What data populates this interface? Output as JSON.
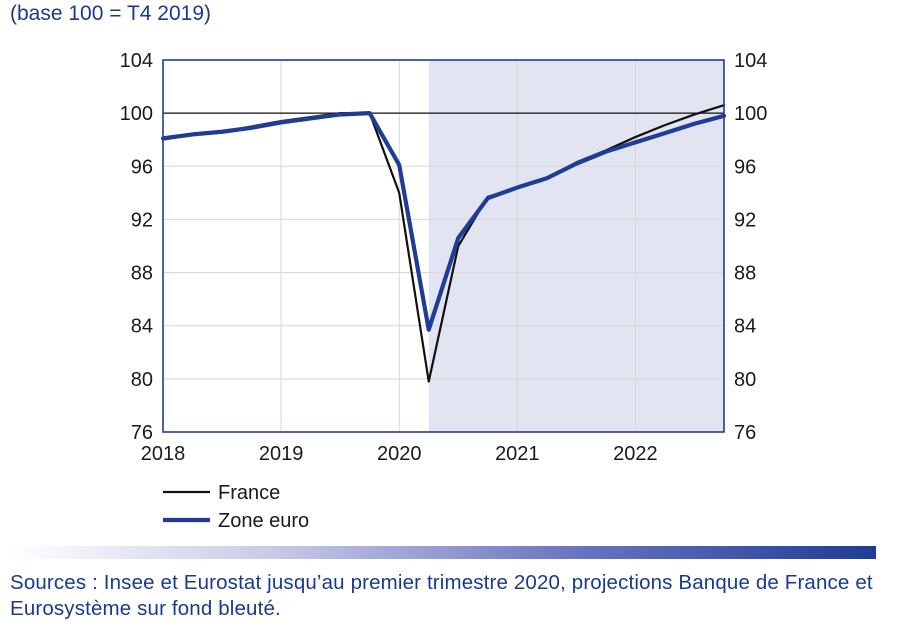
{
  "subtitle": "(base 100 = T4 2019)",
  "sources": "Sources : Insee et Eurostat jusqu’au premier trimestre 2020, projections Banque de France et Eurosystème sur fond bleuté.",
  "colors": {
    "france": "#111111",
    "zone_euro": "#1f3c96",
    "projection_band": "#e3e4f2",
    "frame": "#1f3c96",
    "text": "#1a3a8f"
  },
  "chart_data": {
    "type": "line",
    "title": "",
    "xlabel": "",
    "ylabel": "",
    "ylim": [
      76,
      104
    ],
    "xlim": [
      2018.0,
      2022.75
    ],
    "y_ticks": [
      "104",
      "100",
      "96",
      "92",
      "88",
      "84",
      "80",
      "76"
    ],
    "x_ticks": [
      "2018",
      "2019",
      "2020",
      "2021",
      "2022"
    ],
    "reference_line": 100,
    "projection_start": 2020.25,
    "legend_position": "bottom-left",
    "grid": true,
    "x": [
      2018.0,
      2018.25,
      2018.5,
      2018.75,
      2019.0,
      2019.25,
      2019.5,
      2019.75,
      2020.0,
      2020.25,
      2020.5,
      2020.75,
      2021.0,
      2021.25,
      2021.5,
      2021.75,
      2022.0,
      2022.25,
      2022.5,
      2022.75
    ],
    "series": [
      {
        "name": "France",
        "values": [
          98.0,
          98.4,
          98.6,
          99.0,
          99.4,
          99.7,
          100.0,
          100.0,
          94.0,
          79.8,
          90.0,
          93.7,
          94.4,
          95.1,
          96.3,
          97.2,
          98.2,
          99.1,
          99.9,
          100.6
        ]
      },
      {
        "name": "Zone euro",
        "values": [
          98.1,
          98.4,
          98.6,
          98.9,
          99.3,
          99.6,
          99.9,
          100.0,
          96.1,
          83.7,
          90.6,
          93.6,
          94.4,
          95.1,
          96.2,
          97.1,
          97.8,
          98.5,
          99.2,
          99.8
        ]
      }
    ]
  }
}
